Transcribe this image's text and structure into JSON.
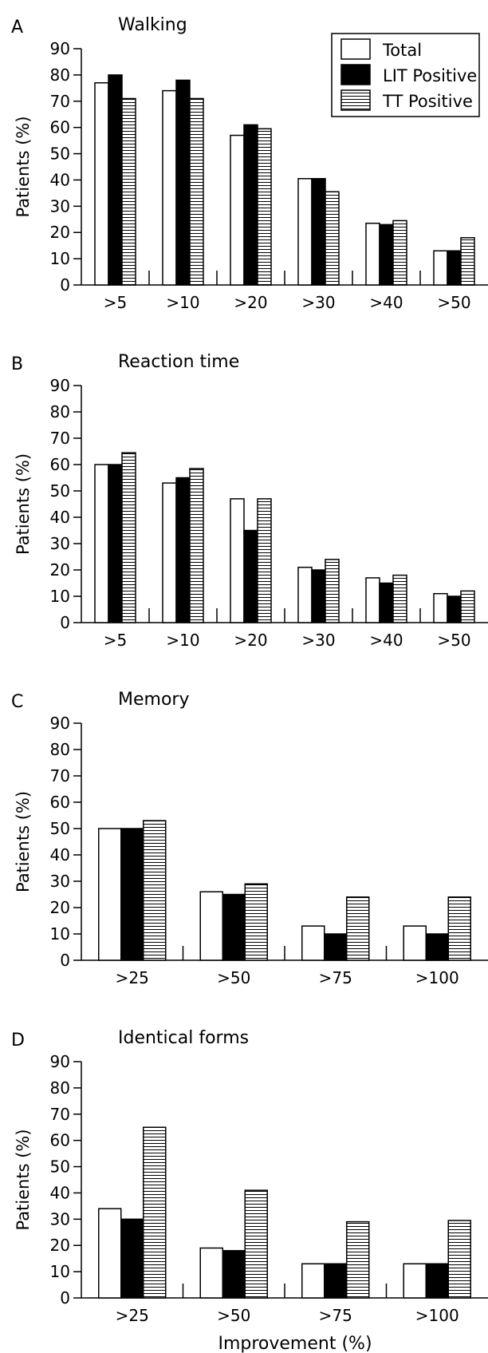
{
  "figure": {
    "xlabel": "Improvement (%)"
  },
  "legend": {
    "items": [
      {
        "label": "Total",
        "pattern": "white"
      },
      {
        "label": "LIT Positive",
        "pattern": "black"
      },
      {
        "label": "TT Positive",
        "pattern": "hatch"
      }
    ]
  },
  "colors": {
    "total": "#ffffff",
    "lit": "#000000",
    "tt_hatch": "#000000",
    "axis": "#000000"
  },
  "chart_data": [
    {
      "type": "bar",
      "panel_letter": "A",
      "title": "Walking",
      "ylabel": "Patients (%)",
      "xlabel": "",
      "ylim": [
        0,
        90
      ],
      "yticks": [
        0,
        10,
        20,
        30,
        40,
        50,
        60,
        70,
        80,
        90
      ],
      "categories": [
        ">5",
        ">10",
        ">20",
        ">30",
        ">40",
        ">50"
      ],
      "series": [
        {
          "name": "Total",
          "values": [
            77,
            74,
            57,
            40.5,
            23.5,
            13
          ]
        },
        {
          "name": "LIT Positive",
          "values": [
            80,
            78,
            61,
            40.5,
            23,
            13
          ]
        },
        {
          "name": "TT Positive",
          "values": [
            71,
            71,
            59.5,
            35.5,
            24.5,
            18
          ]
        }
      ]
    },
    {
      "type": "bar",
      "panel_letter": "B",
      "title": "Reaction time",
      "ylabel": "Patients (%)",
      "xlabel": "",
      "ylim": [
        0,
        90
      ],
      "yticks": [
        0,
        10,
        20,
        30,
        40,
        50,
        60,
        70,
        80,
        90
      ],
      "categories": [
        ">5",
        ">10",
        ">20",
        ">30",
        ">40",
        ">50"
      ],
      "series": [
        {
          "name": "Total",
          "values": [
            60,
            53,
            47,
            21,
            17,
            11
          ]
        },
        {
          "name": "LIT Positive",
          "values": [
            60,
            55,
            35,
            20,
            15,
            10
          ]
        },
        {
          "name": "TT Positive",
          "values": [
            64.5,
            58.5,
            47,
            24,
            18,
            12
          ]
        }
      ]
    },
    {
      "type": "bar",
      "panel_letter": "C",
      "title": "Memory",
      "ylabel": "Patients (%)",
      "xlabel": "",
      "ylim": [
        0,
        90
      ],
      "yticks": [
        0,
        10,
        20,
        30,
        40,
        50,
        60,
        70,
        80,
        90
      ],
      "categories": [
        ">25",
        ">50",
        ">75",
        ">100"
      ],
      "series": [
        {
          "name": "Total",
          "values": [
            50,
            26,
            13,
            13
          ]
        },
        {
          "name": "LIT Positive",
          "values": [
            50,
            25,
            10,
            10
          ]
        },
        {
          "name": "TT Positive",
          "values": [
            53,
            29,
            24,
            24
          ]
        }
      ]
    },
    {
      "type": "bar",
      "panel_letter": "D",
      "title": "Identical forms",
      "ylabel": "Patients (%)",
      "xlabel": "Improvement (%)",
      "ylim": [
        0,
        90
      ],
      "yticks": [
        0,
        10,
        20,
        30,
        40,
        50,
        60,
        70,
        80,
        90
      ],
      "categories": [
        ">25",
        ">50",
        ">75",
        ">100"
      ],
      "series": [
        {
          "name": "Total",
          "values": [
            34,
            19,
            13,
            13
          ]
        },
        {
          "name": "LIT Positive",
          "values": [
            30,
            18,
            13,
            13
          ]
        },
        {
          "name": "TT Positive",
          "values": [
            65,
            41,
            29,
            29.5
          ]
        }
      ]
    }
  ]
}
